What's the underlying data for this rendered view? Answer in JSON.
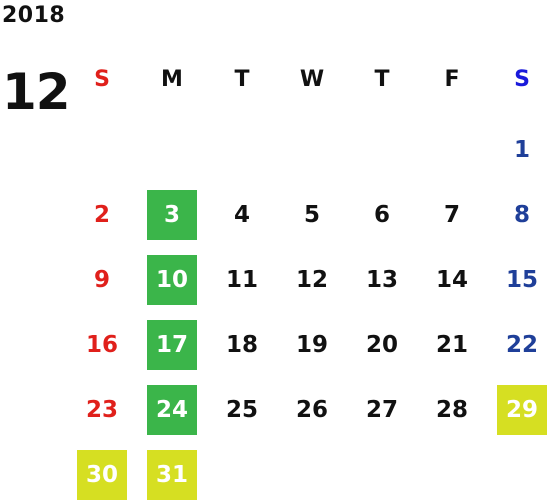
{
  "calendar": {
    "year": "2018",
    "month": "12",
    "weekdays": [
      {
        "label": "S",
        "color": "#e0201b"
      },
      {
        "label": "M",
        "color": "#111111"
      },
      {
        "label": "T",
        "color": "#111111"
      },
      {
        "label": "W",
        "color": "#111111"
      },
      {
        "label": "T",
        "color": "#111111"
      },
      {
        "label": "F",
        "color": "#111111"
      },
      {
        "label": "S",
        "color": "#1a1adb"
      }
    ],
    "weeks": [
      [
        null,
        null,
        null,
        null,
        null,
        null,
        {
          "day": "1",
          "style": "saturday"
        }
      ],
      [
        {
          "day": "2",
          "style": "sunday"
        },
        {
          "day": "3",
          "style": "green"
        },
        {
          "day": "4"
        },
        {
          "day": "5"
        },
        {
          "day": "6"
        },
        {
          "day": "7"
        },
        {
          "day": "8",
          "style": "saturday"
        }
      ],
      [
        {
          "day": "9",
          "style": "sunday"
        },
        {
          "day": "10",
          "style": "green"
        },
        {
          "day": "11"
        },
        {
          "day": "12"
        },
        {
          "day": "13"
        },
        {
          "day": "14"
        },
        {
          "day": "15",
          "style": "saturday"
        }
      ],
      [
        {
          "day": "16",
          "style": "sunday"
        },
        {
          "day": "17",
          "style": "green"
        },
        {
          "day": "18"
        },
        {
          "day": "19"
        },
        {
          "day": "20"
        },
        {
          "day": "21"
        },
        {
          "day": "22",
          "style": "saturday"
        }
      ],
      [
        {
          "day": "23",
          "style": "sunday"
        },
        {
          "day": "24",
          "style": "green"
        },
        {
          "day": "25"
        },
        {
          "day": "26"
        },
        {
          "day": "27"
        },
        {
          "day": "28"
        },
        {
          "day": "29",
          "style": "yellow"
        }
      ],
      [
        {
          "day": "30",
          "style": "yellow"
        },
        {
          "day": "31",
          "style": "yellow"
        },
        null,
        null,
        null,
        null,
        null
      ]
    ],
    "colors": {
      "sunday": "#e0201b",
      "saturday": "#1f3f99",
      "weekday": "#111111",
      "green_bg": "#3bb54a",
      "yellow_bg": "#d6df22"
    }
  }
}
